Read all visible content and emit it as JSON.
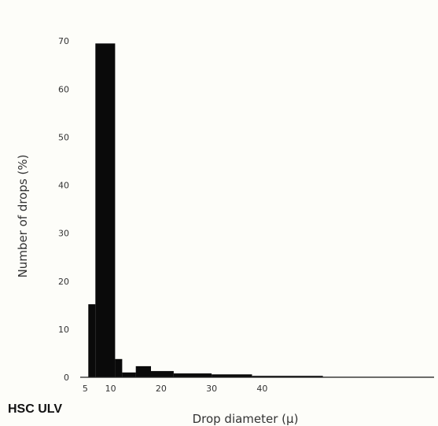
{
  "corner_label": "HSC ULV",
  "chart_data": {
    "type": "bar",
    "title": "",
    "xlabel": "Drop diameter (μ)",
    "ylabel": "Number of drops (%)",
    "x_ticks": [
      5,
      10,
      20,
      30,
      40
    ],
    "y_ticks": [
      0,
      10,
      20,
      30,
      40,
      50,
      60,
      70
    ],
    "xlim": [
      4,
      74
    ],
    "ylim": [
      0,
      72
    ],
    "bins": [
      {
        "x0": 5.6,
        "x1": 7.0,
        "value": 15.2
      },
      {
        "x0": 7.0,
        "x1": 10.9,
        "value": 69.5
      },
      {
        "x0": 10.9,
        "x1": 12.3,
        "value": 3.8
      },
      {
        "x0": 12.3,
        "x1": 15.0,
        "value": 1.0
      },
      {
        "x0": 15.0,
        "x1": 18.0,
        "value": 2.3
      },
      {
        "x0": 18.0,
        "x1": 22.5,
        "value": 1.3
      },
      {
        "x0": 22.5,
        "x1": 30.0,
        "value": 0.8
      },
      {
        "x0": 30.0,
        "x1": 38.0,
        "value": 0.6
      },
      {
        "x0": 38.0,
        "x1": 52.0,
        "value": 0.3
      },
      {
        "x0": 52.0,
        "x1": 74.0,
        "value": 0.1
      }
    ],
    "bar_color": "#0a0a0a",
    "grid": false
  }
}
